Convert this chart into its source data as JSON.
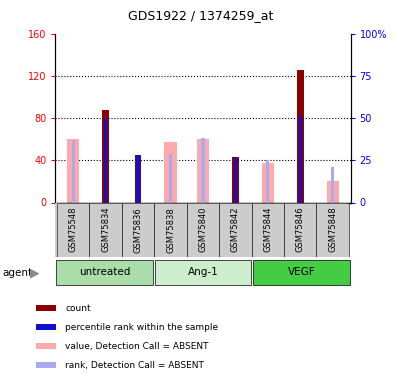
{
  "title": "GDS1922 / 1374259_at",
  "samples": [
    "GSM75548",
    "GSM75834",
    "GSM75836",
    "GSM75838",
    "GSM75840",
    "GSM75842",
    "GSM75844",
    "GSM75846",
    "GSM75848"
  ],
  "dark_red_bars": [
    null,
    88,
    45,
    null,
    null,
    43,
    null,
    126,
    null
  ],
  "blue_squares_pct": [
    null,
    50,
    28,
    null,
    null,
    27,
    null,
    51,
    null
  ],
  "pink_absent_bars": [
    60,
    null,
    null,
    57,
    60,
    null,
    37,
    null,
    20
  ],
  "light_blue_absent_pct": [
    37,
    null,
    null,
    29,
    38,
    null,
    25,
    null,
    21
  ],
  "ylim_left": [
    0,
    160
  ],
  "ylim_right": [
    0,
    100
  ],
  "yticks_left": [
    0,
    40,
    80,
    120,
    160
  ],
  "ytick_labels_right": [
    "0",
    "25",
    "50",
    "75",
    "100"
  ],
  "dark_red_color": "#8B0000",
  "blue_color": "#1111CC",
  "pink_color": "#FFAAAA",
  "light_blue_color": "#AAAAEE",
  "group_labels": [
    "untreated",
    "Ang-1",
    "VEGF"
  ],
  "group_colors": [
    "#aaddaa",
    "#cceecc",
    "#44cc44"
  ],
  "group_ranges": [
    [
      0,
      3
    ],
    [
      3,
      6
    ],
    [
      6,
      9
    ]
  ],
  "legend_items": [
    {
      "label": "count",
      "color": "#8B0000"
    },
    {
      "label": "percentile rank within the sample",
      "color": "#1111CC"
    },
    {
      "label": "value, Detection Call = ABSENT",
      "color": "#FFAAAA"
    },
    {
      "label": "rank, Detection Call = ABSENT",
      "color": "#AAAAEE"
    }
  ]
}
